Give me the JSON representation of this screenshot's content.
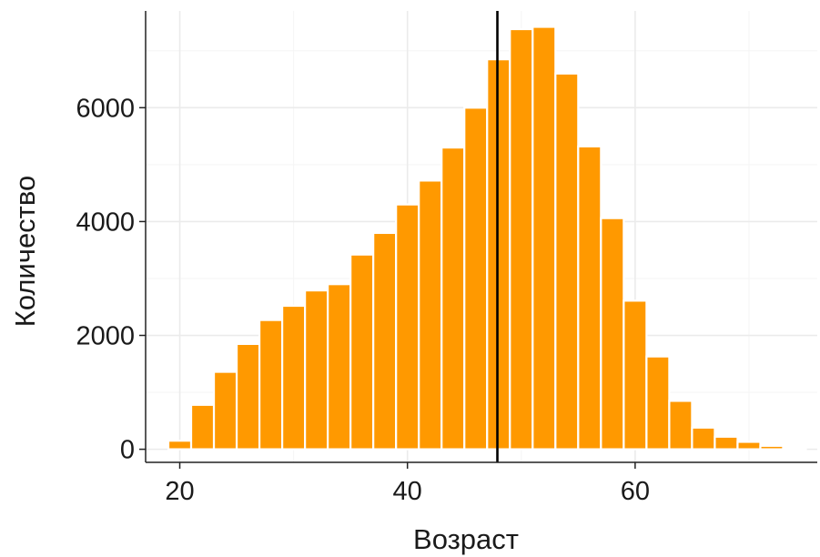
{
  "chart_data": {
    "type": "bar",
    "xlabel": "Возраст",
    "ylabel": "Количество",
    "xlim": [
      17,
      76
    ],
    "ylim": [
      -230,
      7700
    ],
    "x_ticks": [
      20,
      40,
      60
    ],
    "y_ticks": [
      0,
      2000,
      4000,
      6000
    ],
    "bin_width": 2,
    "bins": [
      {
        "x": 20,
        "value": 150
      },
      {
        "x": 22,
        "value": 780
      },
      {
        "x": 24,
        "value": 1360
      },
      {
        "x": 26,
        "value": 1850
      },
      {
        "x": 28,
        "value": 2270
      },
      {
        "x": 30,
        "value": 2520
      },
      {
        "x": 32,
        "value": 2790
      },
      {
        "x": 34,
        "value": 2900
      },
      {
        "x": 36,
        "value": 3420
      },
      {
        "x": 38,
        "value": 3800
      },
      {
        "x": 40,
        "value": 4300
      },
      {
        "x": 42,
        "value": 4720
      },
      {
        "x": 44,
        "value": 5300
      },
      {
        "x": 46,
        "value": 6000
      },
      {
        "x": 48,
        "value": 6850
      },
      {
        "x": 50,
        "value": 7380
      },
      {
        "x": 52,
        "value": 7420
      },
      {
        "x": 54,
        "value": 6600
      },
      {
        "x": 56,
        "value": 5320
      },
      {
        "x": 58,
        "value": 4060
      },
      {
        "x": 60,
        "value": 2610
      },
      {
        "x": 62,
        "value": 1630
      },
      {
        "x": 64,
        "value": 850
      },
      {
        "x": 66,
        "value": 380
      },
      {
        "x": 68,
        "value": 220
      },
      {
        "x": 70,
        "value": 130
      },
      {
        "x": 72,
        "value": 60
      },
      {
        "x": 74,
        "value": 15
      }
    ],
    "reference_lines": [
      {
        "orientation": "vertical",
        "x": 47.9,
        "style": "solid",
        "color": "#000000"
      }
    ],
    "grid": true,
    "colors": {
      "bar_fill": "#ff9900",
      "bar_border": "#ffffff",
      "grid_major": "#ebebeb",
      "grid_minor": "#f5f5f5",
      "axis_line": "#222222"
    }
  }
}
